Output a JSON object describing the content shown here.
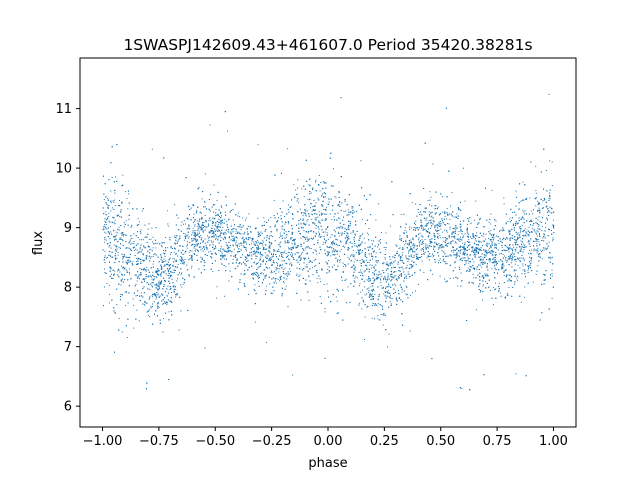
{
  "chart_data": {
    "type": "scatter",
    "title": "1SWASPJ142609.43+461607.0 Period 35420.38281s",
    "xlabel": "phase",
    "ylabel": "flux",
    "xlim": [
      -1.1,
      1.1
    ],
    "ylim": [
      5.65,
      11.85
    ],
    "xticks": [
      -1.0,
      -0.75,
      -0.5,
      -0.25,
      0.0,
      0.25,
      0.5,
      0.75,
      1.0
    ],
    "xtick_labels": [
      "−1.00",
      "−0.75",
      "−0.50",
      "−0.25",
      "0.00",
      "0.25",
      "0.50",
      "0.75",
      "1.00"
    ],
    "yticks": [
      6,
      7,
      8,
      9,
      10,
      11
    ],
    "ytick_labels": [
      "6",
      "7",
      "8",
      "9",
      "10",
      "11"
    ],
    "grid": false,
    "legend": "none",
    "marker_color": "#1f77b4",
    "series": [
      {
        "curve_x": [
          -1.0,
          -0.95,
          -0.9,
          -0.85,
          -0.8,
          -0.75,
          -0.7,
          -0.65,
          -0.6,
          -0.55,
          -0.5,
          -0.45,
          -0.4,
          -0.35,
          -0.3,
          -0.25,
          -0.2,
          -0.15,
          -0.1,
          -0.05,
          0.0,
          0.05,
          0.1,
          0.15,
          0.2,
          0.25,
          0.3,
          0.35,
          0.4,
          0.45,
          0.5,
          0.55,
          0.6,
          0.65,
          0.7,
          0.75,
          0.8,
          0.85,
          0.9,
          0.95,
          1.0
        ],
        "curve_y": [
          8.95,
          8.85,
          8.65,
          8.4,
          8.2,
          8.15,
          8.25,
          8.55,
          8.85,
          8.95,
          8.9,
          8.8,
          8.7,
          8.6,
          8.5,
          8.5,
          8.6,
          8.75,
          8.9,
          8.95,
          8.95,
          8.85,
          8.65,
          8.4,
          8.2,
          8.15,
          8.25,
          8.55,
          8.85,
          8.95,
          8.9,
          8.8,
          8.7,
          8.6,
          8.5,
          8.5,
          8.6,
          8.75,
          8.9,
          8.95,
          8.95
        ],
        "scatter_std": [
          0.55,
          0.55,
          0.5,
          0.45,
          0.4,
          0.35,
          0.35,
          0.35,
          0.3,
          0.3,
          0.3,
          0.3,
          0.3,
          0.3,
          0.3,
          0.3,
          0.35,
          0.4,
          0.45,
          0.5,
          0.55,
          0.5,
          0.45,
          0.4,
          0.35,
          0.35,
          0.35,
          0.35,
          0.3,
          0.3,
          0.3,
          0.3,
          0.3,
          0.3,
          0.3,
          0.3,
          0.35,
          0.4,
          0.45,
          0.5,
          0.55
        ],
        "point_count": 9000
      }
    ]
  }
}
